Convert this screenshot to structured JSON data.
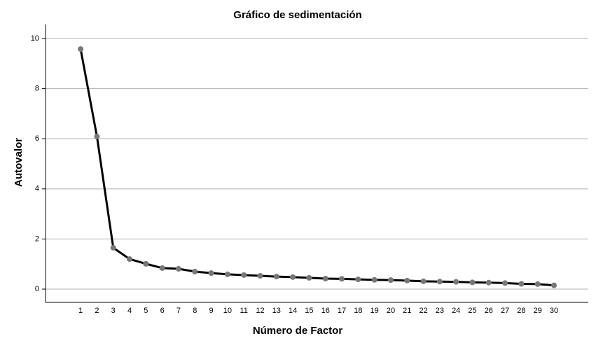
{
  "chart_data": {
    "type": "line",
    "title": "Gráfico de sedimentación",
    "x_label": "Número de Factor",
    "y_label": "Autovalor",
    "x": [
      1,
      2,
      3,
      4,
      5,
      6,
      7,
      8,
      9,
      10,
      11,
      12,
      13,
      14,
      15,
      16,
      17,
      18,
      19,
      20,
      21,
      22,
      23,
      24,
      25,
      26,
      27,
      28,
      29,
      30
    ],
    "series": [
      {
        "color": "#000000",
        "marker_color": "#777777",
        "values": [
          9.58,
          6.09,
          1.65,
          1.2,
          1.01,
          0.84,
          0.81,
          0.7,
          0.64,
          0.59,
          0.56,
          0.53,
          0.5,
          0.48,
          0.45,
          0.42,
          0.41,
          0.39,
          0.37,
          0.36,
          0.34,
          0.31,
          0.3,
          0.29,
          0.27,
          0.26,
          0.24,
          0.21,
          0.2,
          0.15
        ]
      }
    ],
    "xlim": [
      -1.15,
      32.1
    ],
    "xticks": [
      1,
      2,
      3,
      4,
      5,
      6,
      7,
      8,
      9,
      10,
      11,
      12,
      13,
      14,
      15,
      16,
      17,
      18,
      19,
      20,
      21,
      22,
      23,
      24,
      25,
      26,
      27,
      28,
      29,
      30
    ],
    "ylim": [
      -0.53,
      10.56
    ],
    "yticks": [
      0,
      2,
      4,
      6,
      8,
      10
    ],
    "grid": true
  }
}
